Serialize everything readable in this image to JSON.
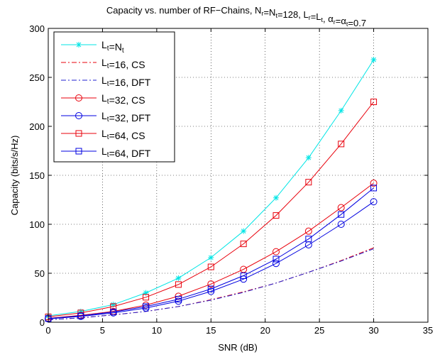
{
  "chart_data": {
    "type": "line",
    "title": {
      "parts": [
        {
          "t": "Capacity vs. number of RF−Chains, N"
        },
        {
          "t": "r",
          "sub": true
        },
        {
          "t": "=N"
        },
        {
          "t": "t",
          "sub": true
        },
        {
          "t": "=128, L"
        },
        {
          "t": "r",
          "sub": true
        },
        {
          "t": "=L"
        },
        {
          "t": "t",
          "sub": true
        },
        {
          "t": ", α"
        },
        {
          "t": "r",
          "sub": true
        },
        {
          "t": "=α"
        },
        {
          "t": "t",
          "sub": true
        },
        {
          "t": "=0.7"
        }
      ]
    },
    "xlabel": "SNR (dB)",
    "ylabel": "Capacity (bits/s/Hz)",
    "xlim": [
      0,
      35
    ],
    "ylim": [
      0,
      300
    ],
    "xticks": [
      0,
      5,
      10,
      15,
      20,
      25,
      30,
      35
    ],
    "yticks": [
      0,
      50,
      100,
      150,
      200,
      250,
      300
    ],
    "grid": "dotted",
    "legend_position": "top-left",
    "x": [
      0,
      3,
      6,
      9,
      12,
      15,
      18,
      21,
      24,
      27,
      30
    ],
    "series": [
      {
        "name": [
          {
            "t": "L"
          },
          {
            "t": "t",
            "sub": true
          },
          {
            "t": "=N"
          },
          {
            "t": "t",
            "sub": true
          }
        ],
        "color": "#00e5e5",
        "dash": "solid",
        "marker": "star",
        "values": [
          6.5,
          11,
          18,
          30,
          45,
          66,
          93,
          127,
          168,
          216,
          268
        ]
      },
      {
        "name": [
          {
            "t": "L"
          },
          {
            "t": "t",
            "sub": true
          },
          {
            "t": "=16, CS"
          }
        ],
        "color": "#e8000b",
        "dash": "dashdot",
        "marker": "none",
        "values": [
          2.5,
          4.5,
          7.5,
          11,
          16,
          23,
          31,
          40,
          51,
          63,
          76
        ]
      },
      {
        "name": [
          {
            "t": "L"
          },
          {
            "t": "t",
            "sub": true
          },
          {
            "t": "=16, DFT"
          }
        ],
        "color": "#2020d0",
        "dash": "dashdot",
        "marker": "none",
        "values": [
          2.5,
          4.5,
          7.5,
          11,
          16,
          22.5,
          30.5,
          40,
          51,
          62.5,
          75
        ]
      },
      {
        "name": [
          {
            "t": "L"
          },
          {
            "t": "t",
            "sub": true
          },
          {
            "t": "=32, CS"
          }
        ],
        "color": "#e8000b",
        "dash": "solid",
        "marker": "circle",
        "values": [
          4,
          7,
          11,
          17.5,
          26.5,
          39,
          54,
          72,
          93,
          117,
          142
        ]
      },
      {
        "name": [
          {
            "t": "L"
          },
          {
            "t": "t",
            "sub": true
          },
          {
            "t": "=32, DFT"
          }
        ],
        "color": "#0000e0",
        "dash": "solid",
        "marker": "circle",
        "values": [
          3.5,
          6,
          9.5,
          14.5,
          21.5,
          31.5,
          44,
          60,
          79,
          100,
          123
        ]
      },
      {
        "name": [
          {
            "t": "L"
          },
          {
            "t": "t",
            "sub": true
          },
          {
            "t": "=64, CS"
          }
        ],
        "color": "#e8000b",
        "dash": "solid",
        "marker": "square",
        "values": [
          5.5,
          9.5,
          16,
          25.5,
          38.5,
          56.5,
          80,
          109,
          143,
          182,
          225
        ]
      },
      {
        "name": [
          {
            "t": "L"
          },
          {
            "t": "t",
            "sub": true
          },
          {
            "t": "=64, DFT"
          }
        ],
        "color": "#0000e0",
        "dash": "solid",
        "marker": "square",
        "values": [
          3.8,
          6.5,
          10.5,
          16,
          23.5,
          34,
          47.5,
          64.5,
          85,
          110,
          137
        ]
      }
    ]
  }
}
